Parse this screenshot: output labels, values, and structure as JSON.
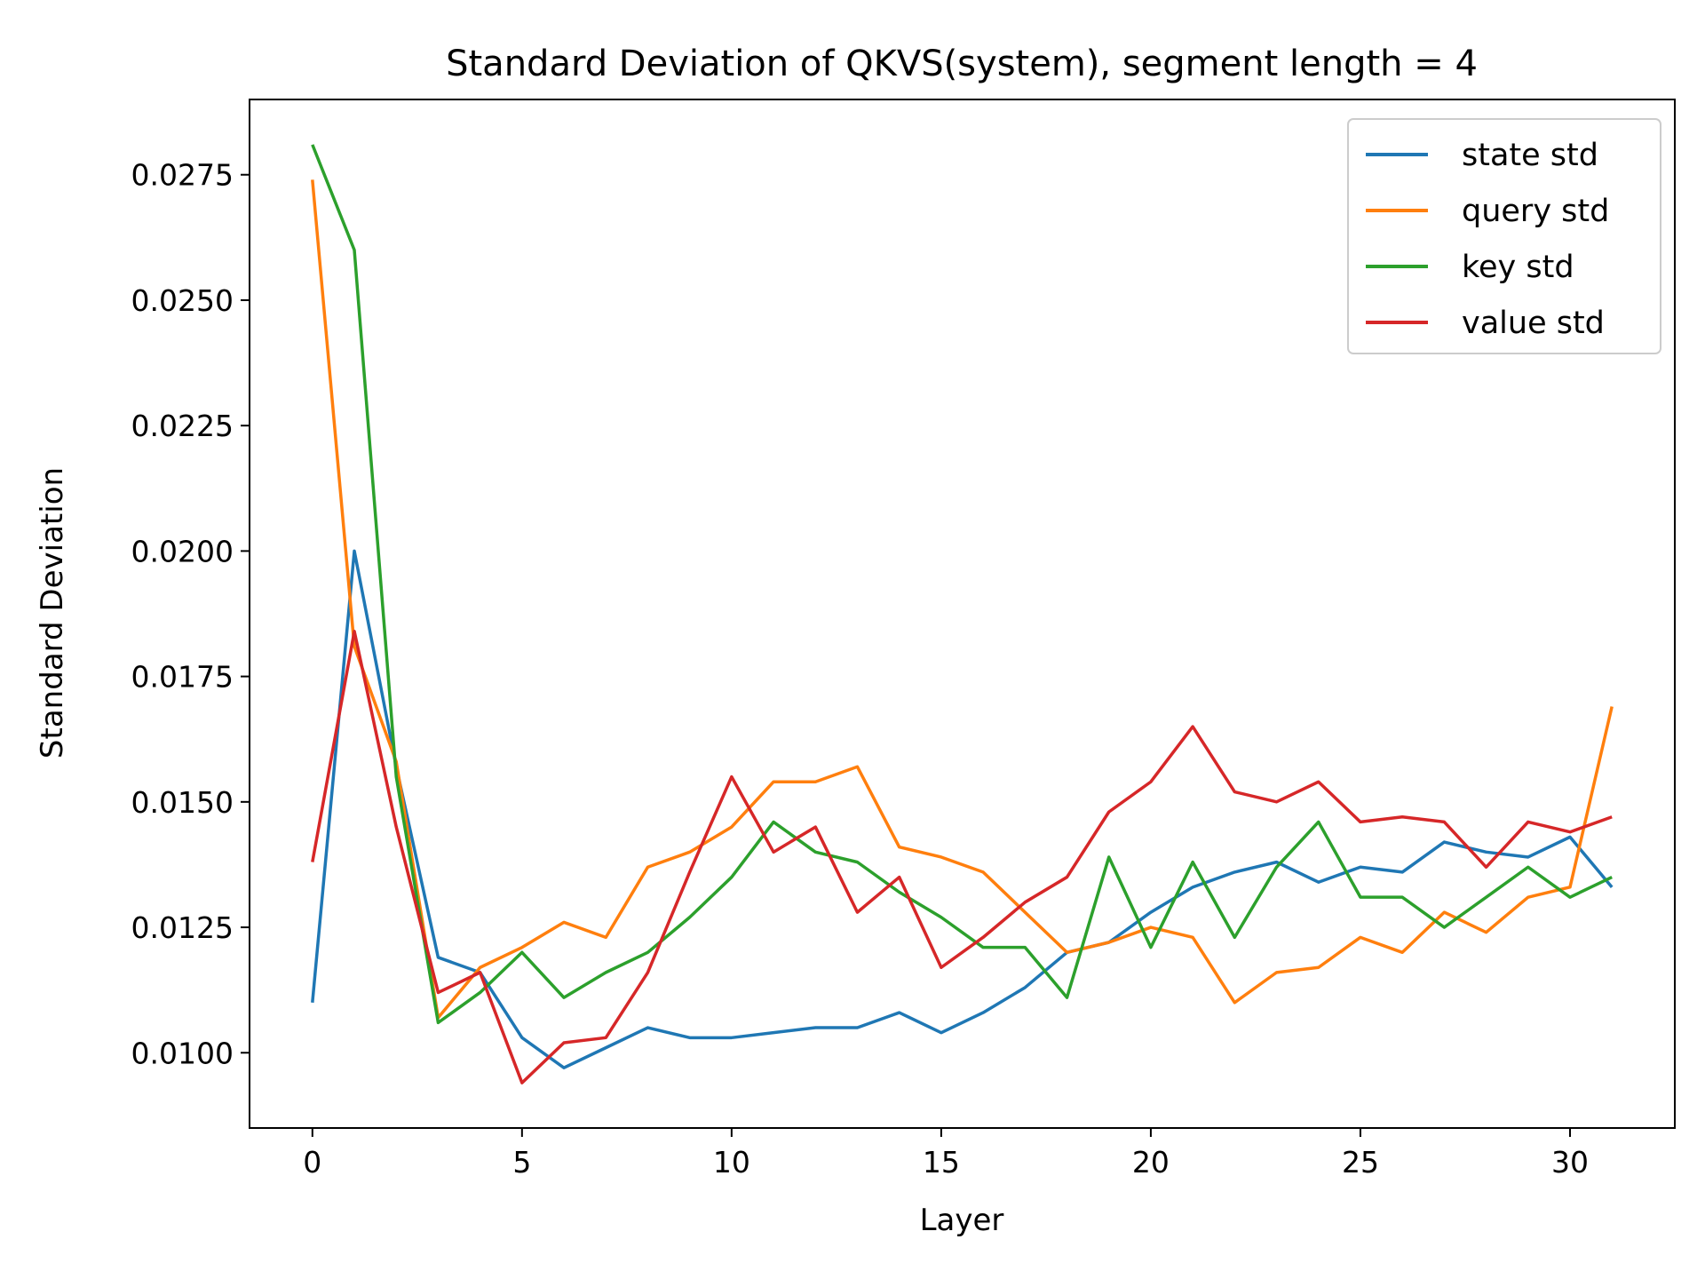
{
  "chart_data": {
    "type": "line",
    "title": "Standard Deviation of QKVS(system), segment length = 4",
    "xlabel": "Layer",
    "ylabel": "Standard Deviation",
    "xlim": [
      -1.5,
      32.5
    ],
    "ylim": [
      0.0085,
      0.029
    ],
    "xticks": [
      0,
      5,
      10,
      15,
      20,
      25,
      30
    ],
    "yticks": [
      0.01,
      0.0125,
      0.015,
      0.0175,
      0.02,
      0.0225,
      0.025,
      0.0275
    ],
    "ytick_labels": [
      "0.0100",
      "0.0125",
      "0.0150",
      "0.0175",
      "0.0200",
      "0.0225",
      "0.0250",
      "0.0275"
    ],
    "grid": false,
    "legend_position": "top-right",
    "x": [
      0,
      1,
      2,
      3,
      4,
      5,
      6,
      7,
      8,
      9,
      10,
      11,
      12,
      13,
      14,
      15,
      16,
      17,
      18,
      19,
      20,
      21,
      22,
      23,
      24,
      25,
      26,
      27,
      28,
      29,
      30,
      31
    ],
    "series": [
      {
        "name": "state std",
        "color": "#1f77b4",
        "values": [
          0.011,
          0.02,
          0.0157,
          0.0119,
          0.0116,
          0.0103,
          0.0097,
          0.0101,
          0.0105,
          0.0103,
          0.0103,
          0.0104,
          0.0105,
          0.0105,
          0.0108,
          0.0104,
          0.0108,
          0.0113,
          0.012,
          0.0122,
          0.0128,
          0.0133,
          0.0136,
          0.0138,
          0.0134,
          0.0137,
          0.0136,
          0.0142,
          0.014,
          0.0139,
          0.0143,
          0.0133
        ]
      },
      {
        "name": "query std",
        "color": "#ff7f0e",
        "values": [
          0.0274,
          0.0181,
          0.0158,
          0.0107,
          0.0117,
          0.0121,
          0.0126,
          0.0123,
          0.0137,
          0.014,
          0.0145,
          0.0154,
          0.0154,
          0.0157,
          0.0141,
          0.0139,
          0.0136,
          0.0128,
          0.012,
          0.0122,
          0.0125,
          0.0123,
          0.011,
          0.0116,
          0.0117,
          0.0123,
          0.012,
          0.0128,
          0.0124,
          0.0131,
          0.0133,
          0.0169
        ]
      },
      {
        "name": "key std",
        "color": "#2ca02c",
        "values": [
          0.0281,
          0.026,
          0.0155,
          0.0106,
          0.0112,
          0.012,
          0.0111,
          0.0116,
          0.012,
          0.0127,
          0.0135,
          0.0146,
          0.014,
          0.0138,
          0.0132,
          0.0127,
          0.0121,
          0.0121,
          0.0111,
          0.0139,
          0.0121,
          0.0138,
          0.0123,
          0.0137,
          0.0146,
          0.0131,
          0.0131,
          0.0125,
          0.0131,
          0.0137,
          0.0131,
          0.0135
        ]
      },
      {
        "name": "value std",
        "color": "#d62728",
        "values": [
          0.0138,
          0.0184,
          0.0145,
          0.0112,
          0.0116,
          0.0094,
          0.0102,
          0.0103,
          0.0116,
          0.0136,
          0.0155,
          0.014,
          0.0145,
          0.0128,
          0.0135,
          0.0117,
          0.0123,
          0.013,
          0.0135,
          0.0148,
          0.0154,
          0.0165,
          0.0152,
          0.015,
          0.0154,
          0.0146,
          0.0147,
          0.0146,
          0.0137,
          0.0146,
          0.0144,
          0.0147
        ]
      }
    ]
  }
}
